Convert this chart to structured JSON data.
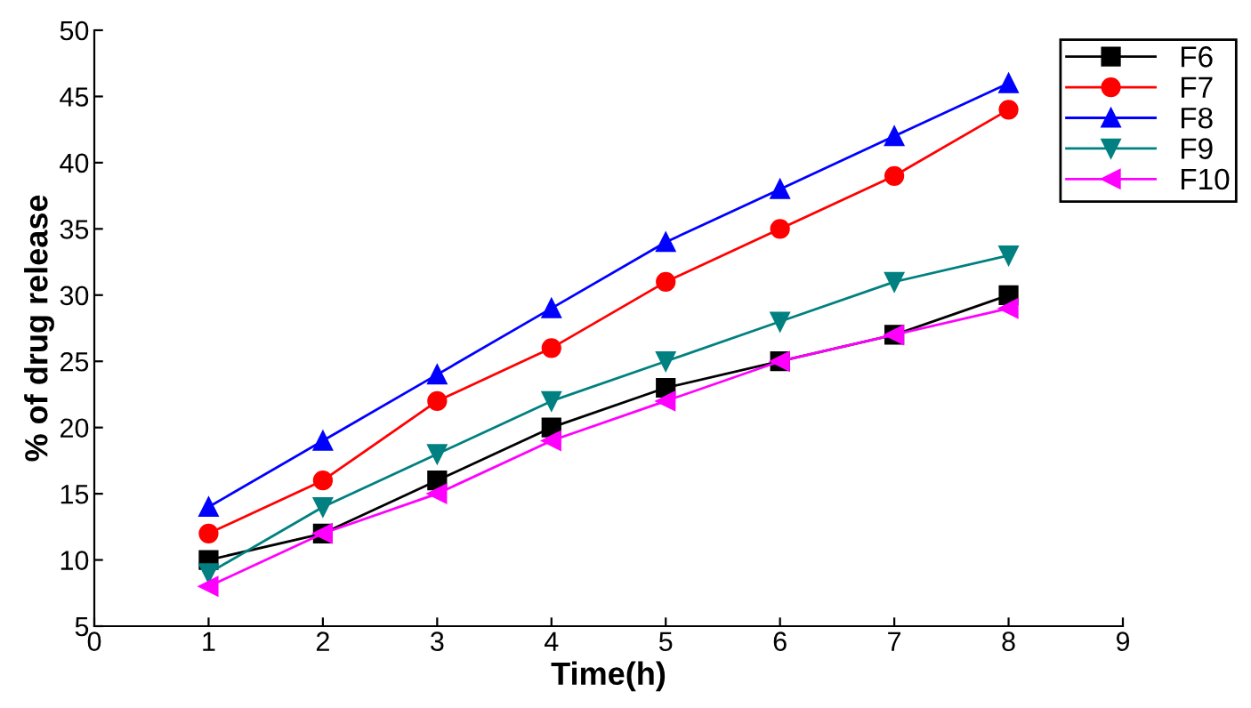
{
  "chart_data": {
    "type": "line",
    "xlabel": "Time(h)",
    "ylabel": "% of drug release",
    "x": [
      1,
      2,
      3,
      4,
      5,
      6,
      7,
      8
    ],
    "series": [
      {
        "name": "F6",
        "color": "#000000",
        "marker": "square",
        "values": [
          10,
          12,
          16,
          20,
          23,
          25,
          27,
          30
        ]
      },
      {
        "name": "F7",
        "color": "#ff0000",
        "marker": "circle",
        "values": [
          12,
          16,
          22,
          26,
          31,
          35,
          39,
          44
        ]
      },
      {
        "name": "F8",
        "color": "#0000ff",
        "marker": "triangle",
        "values": [
          14,
          19,
          24,
          29,
          34,
          38,
          42,
          46
        ]
      },
      {
        "name": "F9",
        "color": "#008080",
        "marker": "triangle_down",
        "values": [
          9,
          14,
          18,
          22,
          25,
          28,
          31,
          33
        ]
      },
      {
        "name": "F10",
        "color": "#ff00ff",
        "marker": "triangle_left",
        "values": [
          8,
          12,
          15,
          19,
          22,
          25,
          27,
          29
        ]
      }
    ],
    "xlim": [
      0,
      9
    ],
    "xticks": [
      0,
      1,
      2,
      3,
      4,
      5,
      6,
      7,
      8,
      9
    ],
    "ylim": [
      5,
      50
    ],
    "yticks": [
      5,
      10,
      15,
      20,
      25,
      30,
      35,
      40,
      45,
      50
    ],
    "grid": false,
    "legend": "top right",
    "line_style": "solid"
  }
}
